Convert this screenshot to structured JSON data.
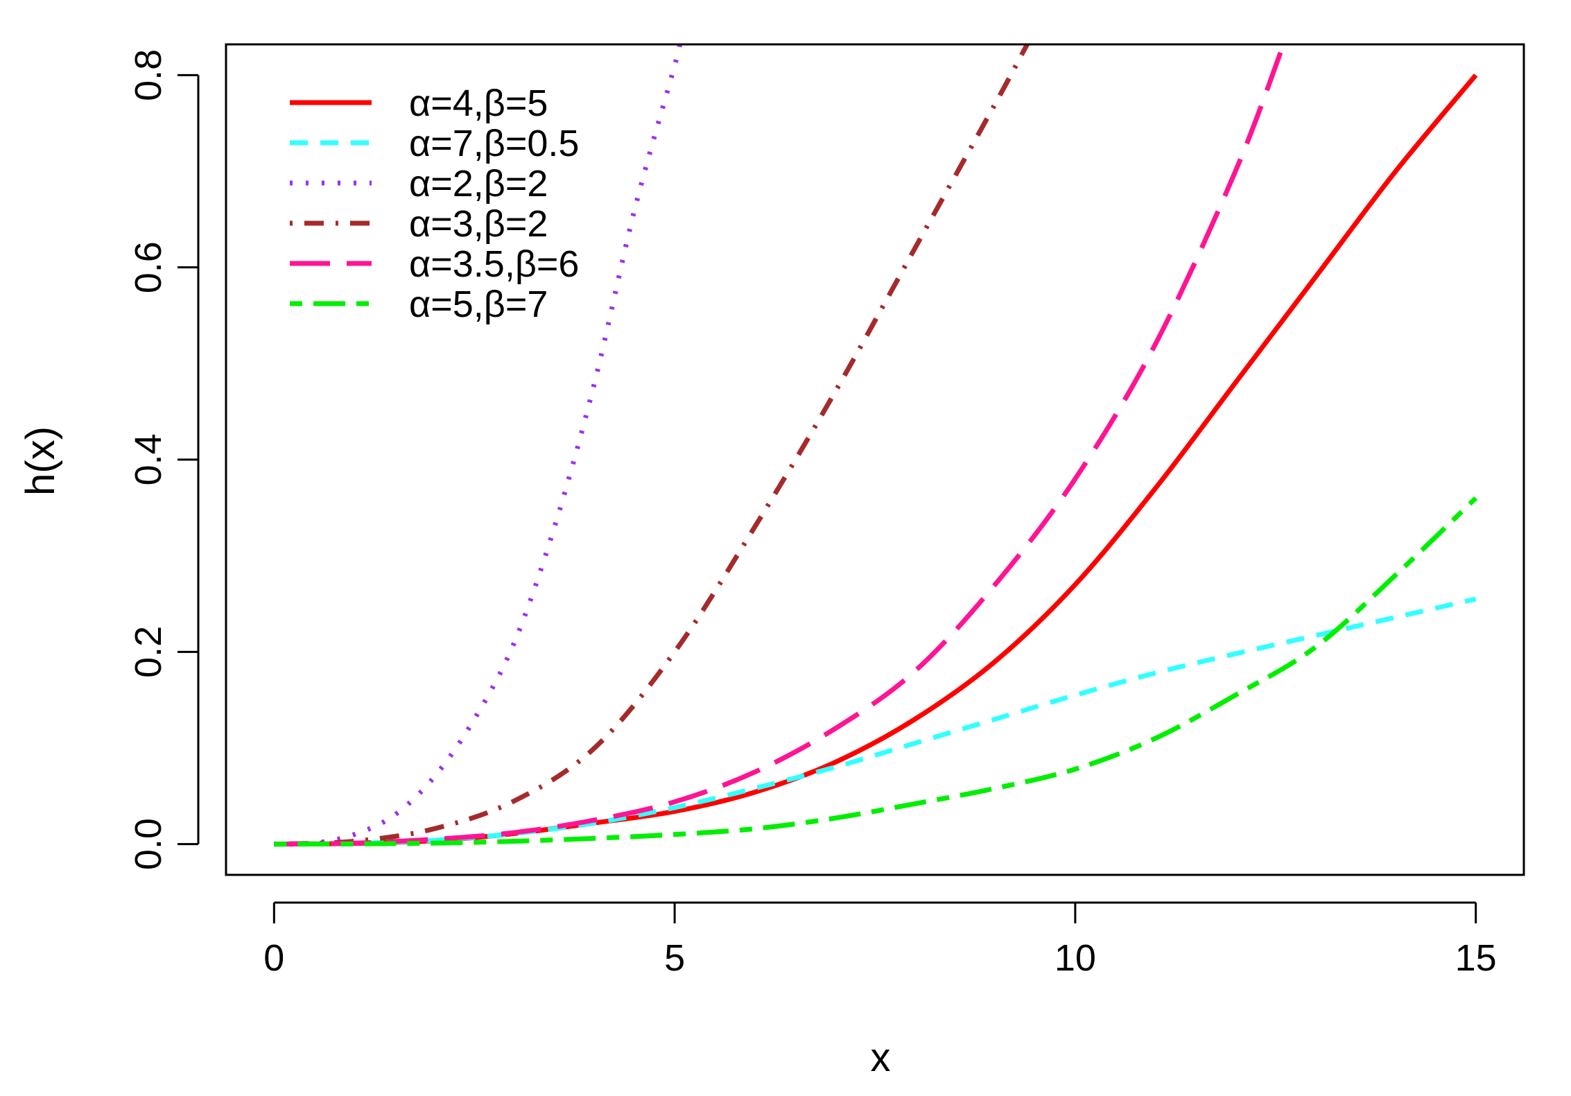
{
  "chart_data": {
    "type": "line",
    "title": "",
    "xlabel": "x",
    "ylabel": "h(x)",
    "xlim": [
      -0.6,
      15.6
    ],
    "ylim": [
      -0.032,
      0.832
    ],
    "x_ticks": [
      0,
      5,
      10,
      15
    ],
    "x_tick_labels": [
      "0",
      "5",
      "10",
      "15"
    ],
    "y_ticks": [
      0.0,
      0.2,
      0.4,
      0.6,
      0.8
    ],
    "y_tick_labels": [
      "0.0",
      "0.2",
      "0.4",
      "0.6",
      "0.8"
    ],
    "grid": false,
    "legend_position": "top-left",
    "series": [
      {
        "name": "α=4,β=5",
        "color": "#ff0000",
        "dash": "solid",
        "points": [
          [
            0,
            0
          ],
          [
            1,
            0.0007
          ],
          [
            2,
            0.0035
          ],
          [
            3,
            0.011
          ],
          [
            4,
            0.022
          ],
          [
            5,
            0.034
          ],
          [
            6,
            0.054
          ],
          [
            7,
            0.085
          ],
          [
            8,
            0.13
          ],
          [
            9,
            0.19
          ],
          [
            10,
            0.27
          ],
          [
            11,
            0.37
          ],
          [
            12,
            0.48
          ],
          [
            13,
            0.59
          ],
          [
            14,
            0.7
          ],
          [
            15,
            0.8
          ]
        ]
      },
      {
        "name": "α=7,β=0.5",
        "color": "#33ffff",
        "dash": "dashed",
        "points": [
          [
            0,
            0
          ],
          [
            1,
            0.0008
          ],
          [
            2,
            0.004
          ],
          [
            3,
            0.011
          ],
          [
            4,
            0.022
          ],
          [
            5,
            0.038
          ],
          [
            6,
            0.058
          ],
          [
            7,
            0.08
          ],
          [
            8,
            0.105
          ],
          [
            9,
            0.13
          ],
          [
            10,
            0.155
          ],
          [
            11,
            0.178
          ],
          [
            12,
            0.198
          ],
          [
            13,
            0.217
          ],
          [
            14,
            0.236
          ],
          [
            15,
            0.255
          ]
        ]
      },
      {
        "name": "α=2,β=2",
        "color": "#9932ee",
        "dash": "dotted",
        "points": [
          [
            0,
            0
          ],
          [
            0.5,
            0.001
          ],
          [
            1,
            0.01
          ],
          [
            1.5,
            0.03
          ],
          [
            2,
            0.07
          ],
          [
            2.5,
            0.13
          ],
          [
            3,
            0.21
          ],
          [
            3.5,
            0.33
          ],
          [
            4,
            0.48
          ],
          [
            4.5,
            0.66
          ],
          [
            5,
            0.81
          ],
          [
            5.06,
            0.832
          ]
        ]
      },
      {
        "name": "α=3,β=2",
        "color": "#a52a2a",
        "dash": "dotdash",
        "points": [
          [
            0,
            0
          ],
          [
            1,
            0.003
          ],
          [
            2,
            0.016
          ],
          [
            3,
            0.045
          ],
          [
            4,
            0.1
          ],
          [
            5,
            0.2
          ],
          [
            6,
            0.33
          ],
          [
            7,
            0.47
          ],
          [
            8,
            0.62
          ],
          [
            9,
            0.77
          ],
          [
            9.4,
            0.832
          ]
        ]
      },
      {
        "name": "α=3.5,β=6",
        "color": "#ff1493",
        "dash": "longdash",
        "points": [
          [
            0,
            0
          ],
          [
            1,
            0.001
          ],
          [
            2,
            0.005
          ],
          [
            3,
            0.012
          ],
          [
            4,
            0.025
          ],
          [
            5,
            0.044
          ],
          [
            6,
            0.075
          ],
          [
            7,
            0.12
          ],
          [
            8,
            0.18
          ],
          [
            9,
            0.27
          ],
          [
            10,
            0.38
          ],
          [
            11,
            0.52
          ],
          [
            12,
            0.7
          ],
          [
            12.6,
            0.832
          ]
        ]
      },
      {
        "name": "α=5,β=7",
        "color": "#00ee00",
        "dash": "twodash",
        "points": [
          [
            0,
            0
          ],
          [
            1,
            0.0002
          ],
          [
            2,
            0.001
          ],
          [
            3,
            0.003
          ],
          [
            4,
            0.006
          ],
          [
            5,
            0.01
          ],
          [
            6,
            0.016
          ],
          [
            7,
            0.027
          ],
          [
            8,
            0.042
          ],
          [
            9,
            0.058
          ],
          [
            10,
            0.078
          ],
          [
            11,
            0.11
          ],
          [
            12,
            0.155
          ],
          [
            13,
            0.205
          ],
          [
            14,
            0.28
          ],
          [
            15,
            0.36
          ]
        ]
      }
    ]
  }
}
